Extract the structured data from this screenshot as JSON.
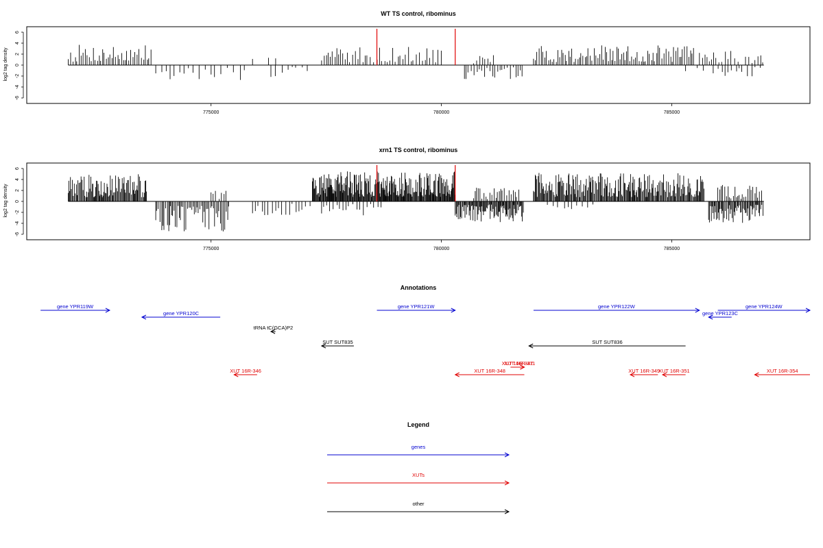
{
  "chart_data": [
    {
      "type": "bar",
      "title": "WT TS control, ribominus",
      "ylabel": "log2 tag density",
      "xlabel": "",
      "xlim": [
        771000,
        788000
      ],
      "ylim": [
        -6,
        6
      ],
      "xticks": [
        775000,
        780000,
        785000
      ],
      "xtick_labels": [
        "775000",
        "780000",
        "785000"
      ],
      "yticks": [
        -6,
        -4,
        -2,
        0,
        2,
        4,
        6
      ],
      "ytick_labels": [
        "-6",
        "-4",
        "-2",
        "0",
        "2",
        "4",
        "6"
      ],
      "markers": [
        778600,
        780300
      ],
      "marker_color": "#e00000",
      "bar_color": "#000000",
      "segments": [
        {
          "from": 771900,
          "to": 773700,
          "sign": 1,
          "step": 40,
          "max": 3.8
        },
        {
          "from": 773800,
          "to": 775800,
          "sign": -1,
          "step": 110,
          "max": 3.0
        },
        {
          "from": 775900,
          "to": 776500,
          "sign": 1,
          "step": 250,
          "max": 1.4
        },
        {
          "from": 776300,
          "to": 777200,
          "sign": -1,
          "step": 120,
          "max": 2.2
        },
        {
          "from": 777400,
          "to": 780000,
          "sign": 1,
          "step": 55,
          "max": 3.4
        },
        {
          "from": 780500,
          "to": 781800,
          "sign": -1,
          "step": 55,
          "max": 2.6
        },
        {
          "from": 780700,
          "to": 781200,
          "sign": 1,
          "step": 70,
          "max": 2.0
        },
        {
          "from": 782000,
          "to": 785500,
          "sign": 1,
          "step": 40,
          "max": 3.6
        },
        {
          "from": 785300,
          "to": 785800,
          "sign": -1,
          "step": 200,
          "max": 1.6
        },
        {
          "from": 785600,
          "to": 786500,
          "sign": 1,
          "step": 60,
          "max": 3.2
        },
        {
          "from": 785900,
          "to": 787000,
          "sign": -1,
          "step": 90,
          "max": 2.2
        },
        {
          "from": 786600,
          "to": 787000,
          "sign": 1,
          "step": 60,
          "max": 2.4
        }
      ]
    },
    {
      "type": "bar",
      "title": "xrn1 TS control, ribominus",
      "ylabel": "log2 tag density",
      "xlabel": "",
      "xlim": [
        771000,
        788000
      ],
      "ylim": [
        -6,
        6
      ],
      "xticks": [
        775000,
        780000,
        785000
      ],
      "xtick_labels": [
        "775000",
        "780000",
        "785000"
      ],
      "yticks": [
        -6,
        -4,
        -2,
        0,
        2,
        4,
        6
      ],
      "ytick_labels": [
        "-6",
        "-4",
        "-2",
        "0",
        "2",
        "4",
        "6"
      ],
      "markers": [
        778600,
        780300
      ],
      "marker_color": "#e00000",
      "bar_color": "#000000",
      "segments": [
        {
          "from": 771900,
          "to": 773600,
          "sign": 1,
          "step": 18,
          "max": 5.0
        },
        {
          "from": 773800,
          "to": 775400,
          "sign": -1,
          "step": 30,
          "max": 5.5
        },
        {
          "from": 775000,
          "to": 775400,
          "sign": 1,
          "step": 60,
          "max": 2.0
        },
        {
          "from": 775900,
          "to": 777200,
          "sign": -1,
          "step": 80,
          "max": 3.0
        },
        {
          "from": 777200,
          "to": 780300,
          "sign": 1,
          "step": 14,
          "max": 5.5
        },
        {
          "from": 777400,
          "to": 778700,
          "sign": -1,
          "step": 70,
          "max": 3.0
        },
        {
          "from": 780300,
          "to": 781800,
          "sign": -1,
          "step": 18,
          "max": 3.8
        },
        {
          "from": 780700,
          "to": 781700,
          "sign": 1,
          "step": 40,
          "max": 2.5
        },
        {
          "from": 782000,
          "to": 785700,
          "sign": 1,
          "step": 18,
          "max": 5.2
        },
        {
          "from": 782300,
          "to": 783400,
          "sign": -1,
          "step": 110,
          "max": 1.6
        },
        {
          "from": 785800,
          "to": 787000,
          "sign": -1,
          "step": 20,
          "max": 4.0
        },
        {
          "from": 786000,
          "to": 787000,
          "sign": 1,
          "step": 40,
          "max": 3.0
        }
      ]
    },
    {
      "type": "diagram",
      "title": "Annotations",
      "xlim": [
        771000,
        788000
      ],
      "features": [
        {
          "label": "gene YPR119W",
          "start": 771300,
          "end": 772800,
          "strand": "+",
          "row": 0,
          "kind": "gene"
        },
        {
          "label": "gene YPR120C",
          "start": 773500,
          "end": 775200,
          "strand": "-",
          "row": 1,
          "kind": "gene"
        },
        {
          "label": "gene YPR121W",
          "start": 778600,
          "end": 780300,
          "strand": "+",
          "row": 0,
          "kind": "gene"
        },
        {
          "label": "gene YPR122W",
          "start": 782000,
          "end": 785600,
          "strand": "+",
          "row": 0,
          "kind": "gene"
        },
        {
          "label": "gene YPR124W",
          "start": 786000,
          "end": 788000,
          "strand": "+",
          "row": 0,
          "kind": "gene"
        },
        {
          "label": "gene YPR123C",
          "start": 785800,
          "end": 786300,
          "strand": "-",
          "row": 1,
          "kind": "gene"
        },
        {
          "label": "tRNA tC(GCA)P2",
          "start": 776300,
          "end": 776400,
          "strand": "-",
          "row": 2,
          "kind": "other"
        },
        {
          "label": "SUT SUT835",
          "start": 777400,
          "end": 778100,
          "strand": "-",
          "row": 3,
          "kind": "other"
        },
        {
          "label": "SUT SUT836",
          "start": 781900,
          "end": 785300,
          "strand": "-",
          "row": 3,
          "kind": "other"
        },
        {
          "label": "XUT 16R-346",
          "start": 775500,
          "end": 776000,
          "strand": "-",
          "row": 5,
          "kind": "xut"
        },
        {
          "label": "XUT 16R-347",
          "start": 781500,
          "end": 781800,
          "strand": "+",
          "row": 4,
          "kind": "xut"
        },
        {
          "label": "XUT 16R-311",
          "start": 781600,
          "end": 781800,
          "strand": "+",
          "row": 4,
          "kind": "xut"
        },
        {
          "label": "XUT 16R-348",
          "start": 780300,
          "end": 781800,
          "strand": "-",
          "row": 5,
          "kind": "xut"
        },
        {
          "label": "XUT 16R-349",
          "start": 784100,
          "end": 784700,
          "strand": "-",
          "row": 5,
          "kind": "xut"
        },
        {
          "label": "XUT 16R-351",
          "start": 784800,
          "end": 785300,
          "strand": "-",
          "row": 5,
          "kind": "xut"
        },
        {
          "label": "XUT 16R-354",
          "start": 786800,
          "end": 788000,
          "strand": "-",
          "row": 5,
          "kind": "xut"
        }
      ]
    },
    {
      "type": "legend",
      "title": "Legend",
      "entries": [
        {
          "label": "genes",
          "color": "#0000d0"
        },
        {
          "label": "XUTs",
          "color": "#e00000"
        },
        {
          "label": "other",
          "color": "#000000"
        }
      ]
    }
  ],
  "colors": {
    "gene": "#0000d0",
    "xut": "#e00000",
    "other": "#000000"
  }
}
